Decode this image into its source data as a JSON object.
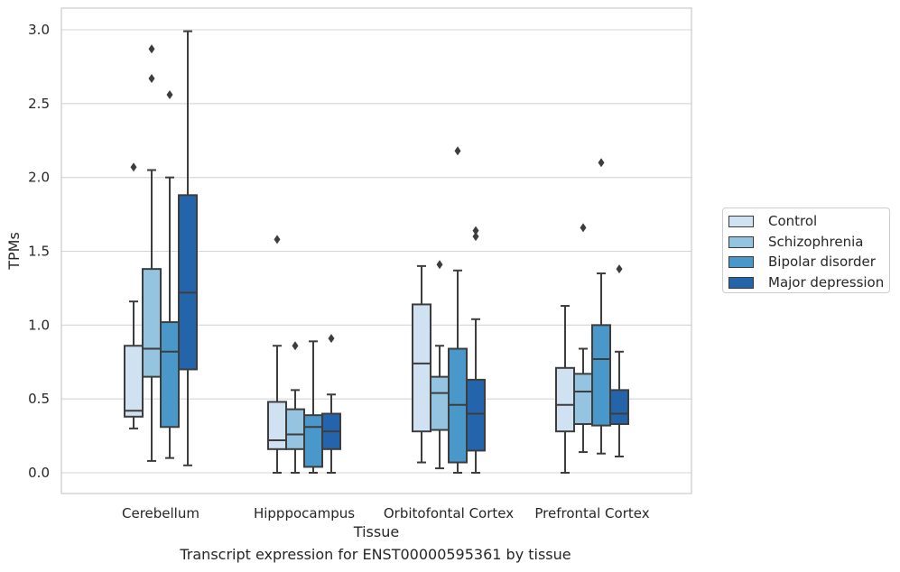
{
  "chart_data": {
    "type": "boxplot",
    "xlabel": "Tissue",
    "ylabel": "TPMs",
    "ylim": [
      -0.15,
      3.15
    ],
    "yticks": [
      0.0,
      0.5,
      1.0,
      1.5,
      2.0,
      2.5,
      3.0
    ],
    "ytick_labels": [
      "0.0",
      "0.5",
      "1.0",
      "1.5",
      "2.0",
      "2.5",
      "3.0"
    ],
    "grid": "horizontal",
    "legend_position": "right",
    "categories": [
      "Cerebellum",
      "Hipppocampus",
      "Orbitofontal Cortex",
      "Prefrontal Cortex"
    ],
    "series": [
      {
        "name": "Control",
        "color": "#d0e1f2",
        "boxes": [
          {
            "whislo": 0.3,
            "q1": 0.38,
            "med": 0.42,
            "q3": 0.86,
            "whishi": 1.16,
            "fliers": [
              2.07
            ]
          },
          {
            "whislo": 0.0,
            "q1": 0.16,
            "med": 0.22,
            "q3": 0.48,
            "whishi": 0.86,
            "fliers": [
              1.58
            ]
          },
          {
            "whislo": 0.07,
            "q1": 0.28,
            "med": 0.74,
            "q3": 1.14,
            "whishi": 1.4,
            "fliers": []
          },
          {
            "whislo": 0.0,
            "q1": 0.28,
            "med": 0.46,
            "q3": 0.71,
            "whishi": 1.13,
            "fliers": []
          }
        ]
      },
      {
        "name": "Schizophrenia",
        "color": "#94c4df",
        "boxes": [
          {
            "whislo": 0.08,
            "q1": 0.65,
            "med": 0.84,
            "q3": 1.38,
            "whishi": 2.05,
            "fliers": [
              2.67,
              2.87
            ]
          },
          {
            "whislo": 0.0,
            "q1": 0.16,
            "med": 0.26,
            "q3": 0.43,
            "whishi": 0.56,
            "fliers": [
              0.86
            ]
          },
          {
            "whislo": 0.03,
            "q1": 0.29,
            "med": 0.54,
            "q3": 0.65,
            "whishi": 0.86,
            "fliers": [
              1.41
            ]
          },
          {
            "whislo": 0.14,
            "q1": 0.33,
            "med": 0.55,
            "q3": 0.67,
            "whishi": 0.84,
            "fliers": [
              1.66
            ]
          }
        ]
      },
      {
        "name": "Bipolar disorder",
        "color": "#4a98c9",
        "boxes": [
          {
            "whislo": 0.1,
            "q1": 0.31,
            "med": 0.82,
            "q3": 1.02,
            "whishi": 2.0,
            "fliers": [
              2.56
            ]
          },
          {
            "whislo": 0.0,
            "q1": 0.04,
            "med": 0.31,
            "q3": 0.39,
            "whishi": 0.89,
            "fliers": []
          },
          {
            "whislo": 0.0,
            "q1": 0.07,
            "med": 0.46,
            "q3": 0.84,
            "whishi": 1.37,
            "fliers": [
              2.18
            ]
          },
          {
            "whislo": 0.13,
            "q1": 0.32,
            "med": 0.77,
            "q3": 1.0,
            "whishi": 1.35,
            "fliers": [
              2.1
            ]
          }
        ]
      },
      {
        "name": "Major depression",
        "color": "#2464ab",
        "boxes": [
          {
            "whislo": 0.05,
            "q1": 0.7,
            "med": 1.22,
            "q3": 1.88,
            "whishi": 2.99,
            "fliers": []
          },
          {
            "whislo": 0.0,
            "q1": 0.16,
            "med": 0.28,
            "q3": 0.4,
            "whishi": 0.53,
            "fliers": [
              0.91
            ]
          },
          {
            "whislo": 0.0,
            "q1": 0.15,
            "med": 0.4,
            "q3": 0.63,
            "whishi": 1.04,
            "fliers": [
              1.6,
              1.64
            ]
          },
          {
            "whislo": 0.11,
            "q1": 0.33,
            "med": 0.4,
            "q3": 0.56,
            "whishi": 0.82,
            "fliers": [
              1.38
            ]
          }
        ]
      }
    ]
  },
  "caption": "Transcript expression for ENST00000595361 by tissue"
}
